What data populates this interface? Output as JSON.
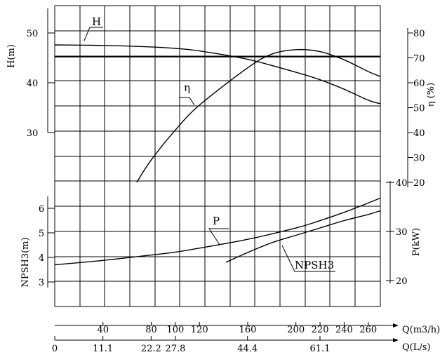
{
  "chart_data": {
    "type": "line",
    "title": "",
    "x_axes": {
      "flow_m3h": {
        "label": "Q(m3/h)",
        "range": [
          0,
          270
        ],
        "ticks": [
          40,
          80,
          100,
          120,
          160,
          200,
          220,
          240,
          260
        ]
      },
      "flow_ls": {
        "label": "Q(L/s)",
        "range": [
          0,
          75
        ],
        "ticks": [
          "0",
          "11.1",
          "22.2",
          "27.8",
          "44.4",
          "61.1"
        ]
      }
    },
    "y_axes": {
      "head": {
        "label": "H(m)",
        "range": [
          25,
          53
        ],
        "ticks": [
          30,
          40,
          50
        ]
      },
      "efficiency": {
        "label": "η (%)",
        "range": [
          20,
          80
        ],
        "ticks": [
          20,
          30,
          40,
          50,
          60,
          70,
          80
        ]
      },
      "npsh": {
        "label": "NPSH3(m)",
        "range": [
          2,
          7
        ],
        "ticks": [
          3,
          4,
          5,
          6
        ]
      },
      "power": {
        "label": "P(kW)",
        "range": [
          20,
          40
        ],
        "ticks": [
          20,
          30,
          40
        ]
      }
    },
    "grid": true,
    "series": [
      {
        "name": "H",
        "axis": "head",
        "x": [
          0,
          40,
          80,
          100,
          120,
          160,
          200,
          220,
          240,
          260,
          270
        ],
        "values": [
          47.6,
          47.5,
          47.2,
          46.9,
          46.4,
          44.7,
          42.1,
          40.6,
          38.7,
          36.5,
          35.8
        ]
      },
      {
        "name": "η",
        "axis": "efficiency",
        "x": [
          68,
          80,
          100,
          120,
          160,
          180,
          200,
          220,
          240,
          260,
          270
        ],
        "values": [
          20,
          29,
          41,
          51,
          66,
          71.5,
          73.3,
          72.5,
          69.2,
          64.5,
          62.5
        ]
      },
      {
        "name": "P",
        "axis": "power",
        "x": [
          0,
          40,
          80,
          100,
          120,
          160,
          200,
          220,
          240,
          260,
          270
        ],
        "values": [
          23.2,
          24.1,
          25.2,
          25.8,
          26.6,
          28.4,
          30.7,
          32.2,
          33.9,
          35.8,
          36.8
        ]
      },
      {
        "name": "NPSH3",
        "axis": "npsh",
        "x": [
          142,
          160,
          180,
          200,
          220,
          240,
          260,
          270
        ],
        "values": [
          3.8,
          4.2,
          4.6,
          4.9,
          5.2,
          5.5,
          5.75,
          5.9
        ]
      }
    ],
    "curve_labels": [
      "H",
      "η",
      "P",
      "NPSH3"
    ]
  }
}
